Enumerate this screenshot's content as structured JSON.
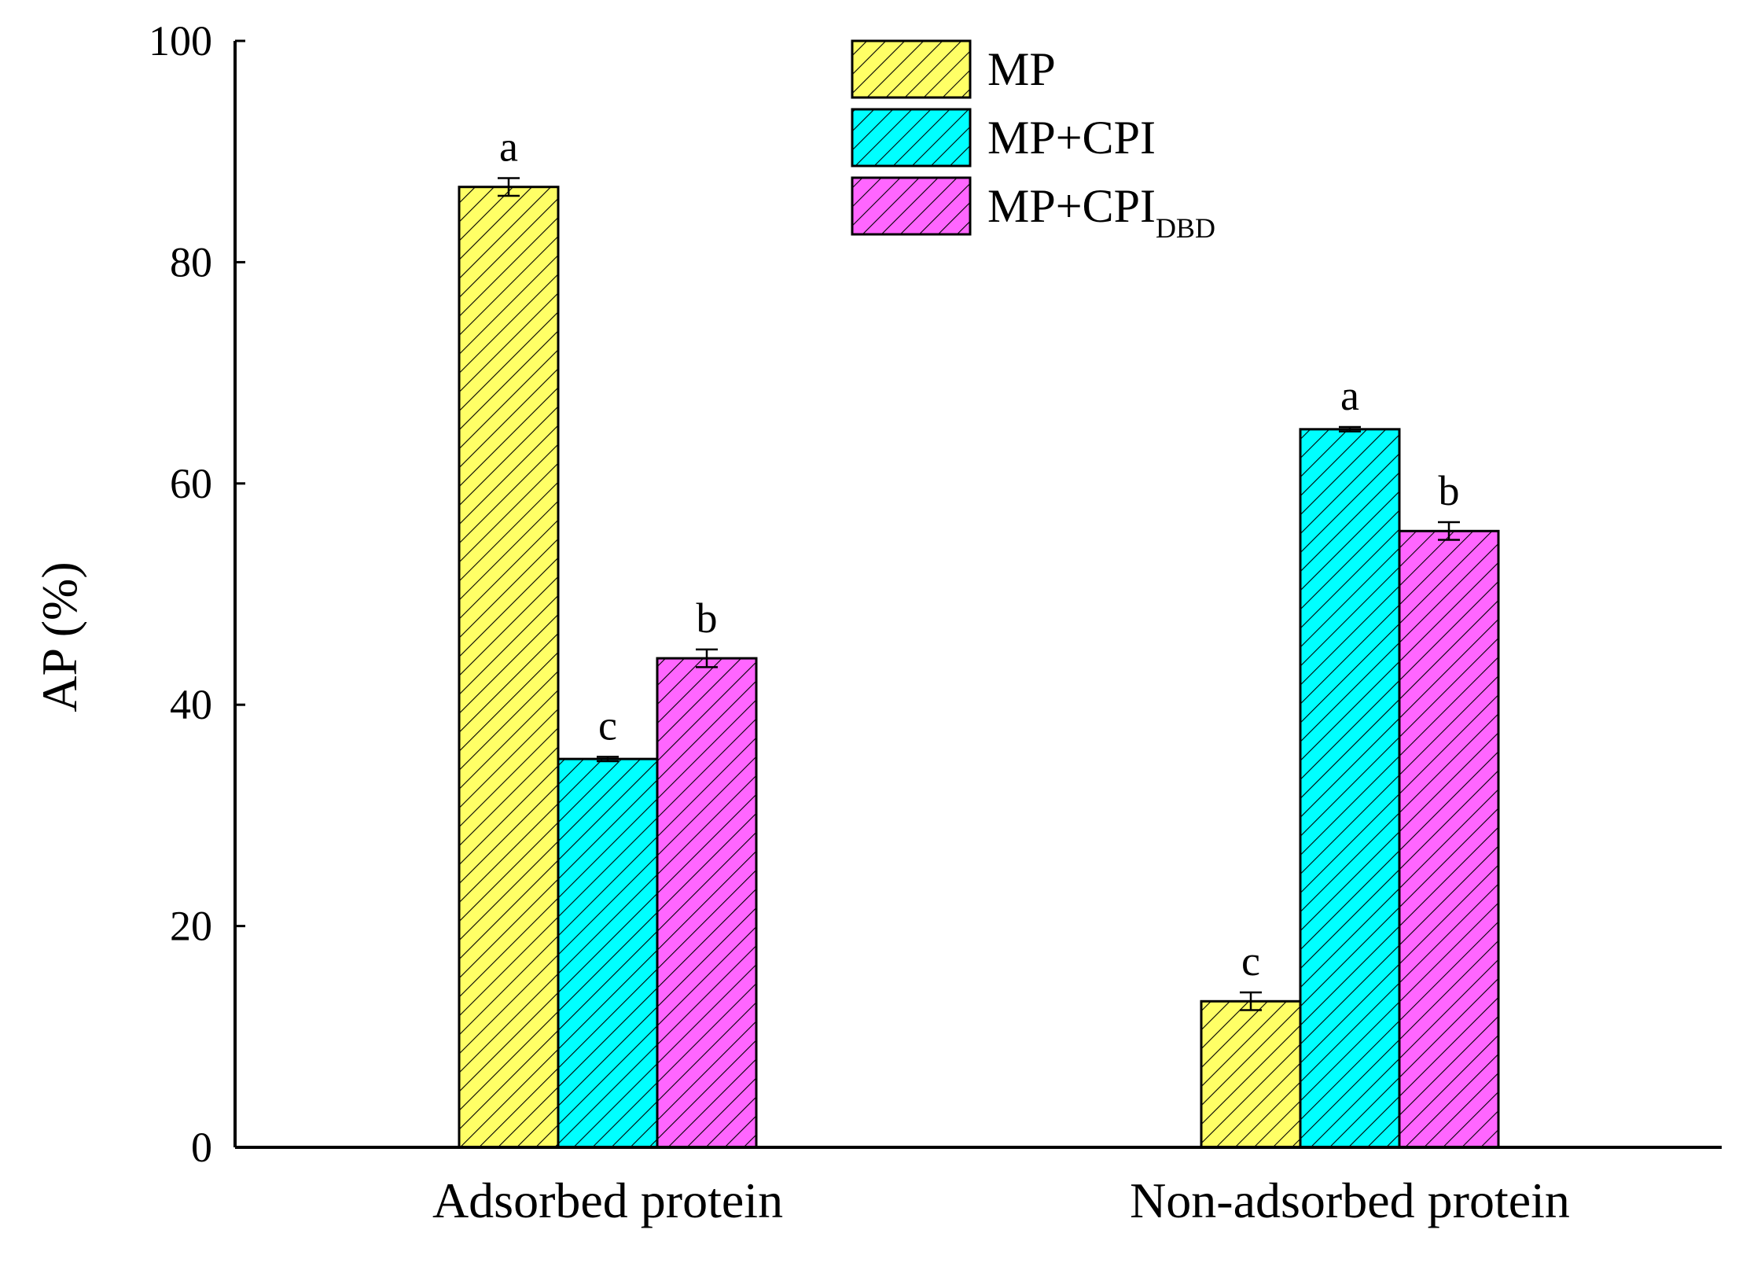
{
  "chart_data": {
    "type": "bar",
    "title": "",
    "xlabel": "",
    "ylabel": "AP (%)",
    "ylim": [
      0,
      100
    ],
    "yticks": [
      "0",
      "20",
      "40",
      "60",
      "80",
      "100"
    ],
    "grid": false,
    "legend_position": "top-center",
    "categories": [
      "Adsorbed protein",
      "Non-adsorbed protein"
    ],
    "series": [
      {
        "name": "MP",
        "legend_label": "MP",
        "legend_subscript": "",
        "color": "#ffff66",
        "values": [
          86.8,
          13.2
        ],
        "errors": [
          0.8,
          0.8
        ],
        "letters": [
          "a",
          "c"
        ]
      },
      {
        "name": "MP+CPI",
        "legend_label": "MP+CPI",
        "legend_subscript": "",
        "color": "#00ffff",
        "values": [
          35.1,
          64.9
        ],
        "errors": [
          0.2,
          0.2
        ],
        "letters": [
          "c",
          "a"
        ]
      },
      {
        "name": "MP+CPI DBD",
        "legend_label": "MP+CPI",
        "legend_subscript": "DBD",
        "color": "#ff66ff",
        "values": [
          44.2,
          55.7
        ],
        "errors": [
          0.8,
          0.8
        ],
        "letters": [
          "b",
          "b"
        ]
      }
    ]
  }
}
